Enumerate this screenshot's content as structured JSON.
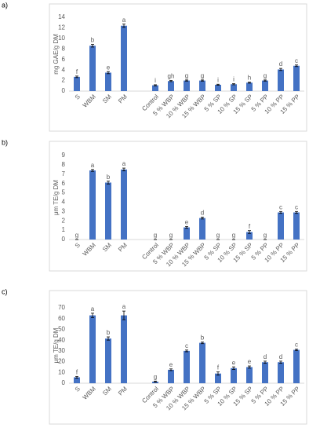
{
  "chart_data": [
    {
      "type": "bar",
      "panel": "a)",
      "y_label": "mg GAE/g DM",
      "color": "#4472c4",
      "grid": false,
      "categories": [
        "S",
        "WBM",
        "SM",
        "PM",
        null,
        "Control",
        "5 % WBP",
        "10 % WBP",
        "15 % WBP",
        "5 % SP",
        "10 % SP",
        "15 % SP",
        "5 % PP",
        "10 % PP",
        "15 % PP"
      ],
      "values": [
        2.7,
        8.6,
        3.5,
        12.4,
        null,
        1.1,
        1.9,
        2.0,
        2.0,
        1.2,
        1.3,
        1.6,
        2.0,
        4.1,
        4.8
      ],
      "errors": [
        0.15,
        0.25,
        0.2,
        0.3,
        null,
        0.1,
        0.1,
        0.1,
        0.1,
        0.1,
        0.1,
        0.1,
        0.1,
        0.2,
        0.15
      ],
      "labels": [
        "f",
        "b",
        "e",
        "a",
        null,
        "i",
        "gh",
        "g",
        "g",
        "i",
        "i",
        "h",
        "g",
        "d",
        "c"
      ],
      "ylim": [
        0,
        14
      ],
      "yticks": [
        0,
        2,
        4,
        6,
        8,
        10,
        12,
        14
      ]
    },
    {
      "type": "bar",
      "panel": "b)",
      "y_label": "μm TE/g DM",
      "color": "#4472c4",
      "grid": false,
      "categories": [
        "S",
        "WBM",
        "SM",
        "PM",
        null,
        "Control",
        "5 % WBP",
        "10 % WBP",
        "15 % WBP",
        "5 % SP",
        "10 % SP",
        "15 % SP",
        "5 % PP",
        "10 % PP",
        "15 % PP"
      ],
      "values": [
        0,
        7.4,
        6.1,
        7.5,
        null,
        0,
        0,
        1.3,
        2.3,
        0,
        0,
        0.8,
        0,
        2.9,
        2.9
      ],
      "errors": [
        0,
        0.1,
        0.15,
        0.15,
        null,
        0,
        0,
        0.1,
        0.1,
        0,
        0,
        0.15,
        0,
        0.1,
        0.1
      ],
      "labels": [
        "g",
        "a",
        "b",
        "a",
        null,
        "g",
        "g",
        "e",
        "d",
        "g",
        "g",
        "f",
        "g",
        "c",
        "c"
      ],
      "ylim": [
        0,
        9
      ],
      "yticks": [
        0,
        1,
        2,
        3,
        4,
        5,
        6,
        7,
        8,
        9
      ]
    },
    {
      "type": "bar",
      "panel": "c)",
      "y_label": "μm TE/g DM",
      "color": "#4472c4",
      "grid": false,
      "categories": [
        "S",
        "WBM",
        "SM",
        "PM",
        null,
        "Control",
        "5 % WBP",
        "10 % WBP",
        "15 % WBP",
        "5 % SP",
        "10 % SP",
        "15 % SP",
        "5 % PP",
        "10 % PP",
        "15 % PP"
      ],
      "values": [
        5.5,
        63,
        41.5,
        63,
        null,
        1.5,
        12.5,
        30,
        37.5,
        9,
        14,
        15,
        19.5,
        19.5,
        31
      ],
      "errors": [
        0.8,
        2,
        1.5,
        4,
        null,
        0.5,
        0.8,
        0.8,
        0.8,
        1.5,
        1.2,
        1,
        1,
        1,
        0.8
      ],
      "labels": [
        "f",
        "a",
        "b",
        "a",
        null,
        "g",
        "e",
        "c",
        "b",
        "f",
        "e",
        "e",
        "d",
        "d",
        "c"
      ],
      "ylim": [
        0,
        70
      ],
      "yticks": [
        0,
        10,
        20,
        30,
        40,
        50,
        60,
        70
      ]
    }
  ]
}
